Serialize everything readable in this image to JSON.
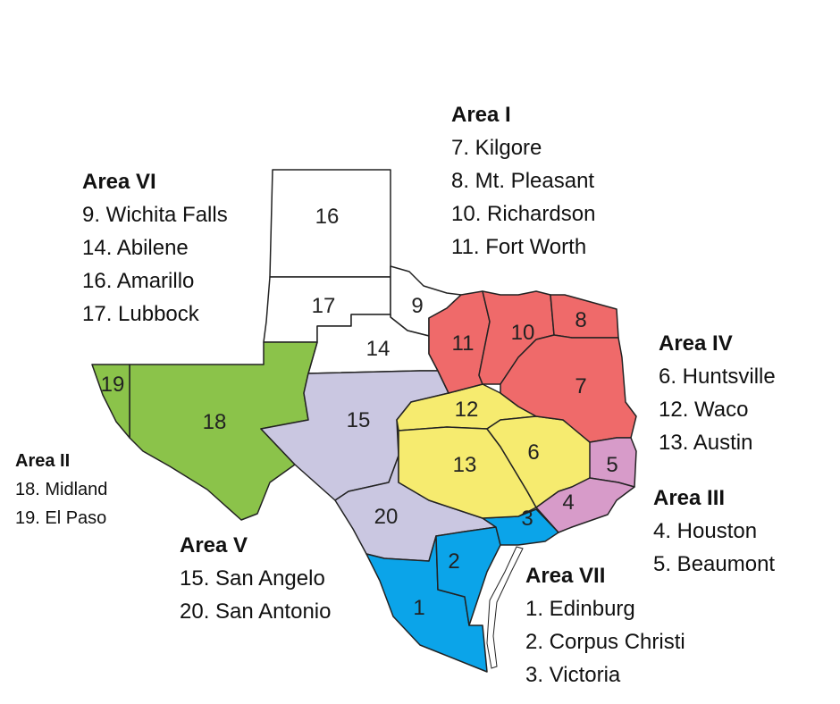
{
  "colors": {
    "area_I": "#ef6a6a",
    "area_II": "#8bc34a",
    "area_III": "#d79bc9",
    "area_IV": "#f6eb6f",
    "area_V": "#cac7e1",
    "area_VI": "#ffffff",
    "area_VII": "#0ba4e9"
  },
  "regions": {
    "r1": "1",
    "r2": "2",
    "r3": "3",
    "r4": "4",
    "r5": "5",
    "r6": "6",
    "r7": "7",
    "r8": "8",
    "r9": "9",
    "r10": "10",
    "r11": "11",
    "r12": "12",
    "r13": "13",
    "r14": "14",
    "r15": "15",
    "r16": "16",
    "r17": "17",
    "r18": "18",
    "r19": "19",
    "r20": "20"
  },
  "legend": {
    "area_I": {
      "title": "Area I",
      "items": [
        "7. Kilgore",
        "8. Mt. Pleasant",
        "10. Richardson",
        "11. Fort Worth"
      ]
    },
    "area_VI": {
      "title": "Area VI",
      "items": [
        "9. Wichita Falls",
        "14. Abilene",
        "16. Amarillo",
        "17. Lubbock"
      ]
    },
    "area_IV": {
      "title": "Area IV",
      "items": [
        "6. Huntsville",
        "12. Waco",
        "13. Austin"
      ]
    },
    "area_II": {
      "title": "Area II",
      "items": [
        "18. Midland",
        "19. El Paso"
      ]
    },
    "area_III": {
      "title": "Area III",
      "items": [
        "4. Houston",
        "5. Beaumont"
      ]
    },
    "area_V": {
      "title": "Area V",
      "items": [
        "15. San Angelo",
        "20. San Antonio"
      ]
    },
    "area_VII": {
      "title": "Area VII",
      "items": [
        "1. Edinburg",
        "2. Corpus Christi",
        "3. Victoria"
      ]
    }
  }
}
